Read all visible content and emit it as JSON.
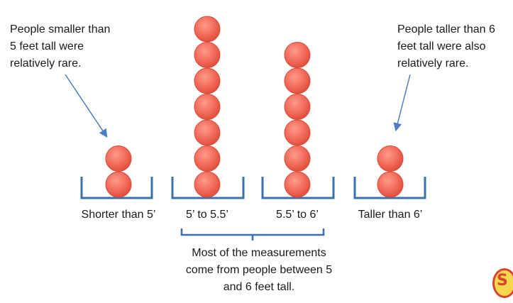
{
  "notes": {
    "left": [
      "People smaller than",
      "5 feet tall were",
      "relatively rare."
    ],
    "right": [
      "People taller than 6",
      "feet tall were also",
      "relatively rare."
    ]
  },
  "chart_data": {
    "type": "bar",
    "categories": [
      "Shorter than 5’",
      "5’ to 5.5’",
      "5.5’ to 6’",
      "Taller than 6’"
    ],
    "values": [
      2,
      7,
      6,
      2
    ]
  },
  "summary": [
    "Most of the measurements",
    "come from people between 5",
    "and 6 feet tall."
  ],
  "colors": {
    "ball": "#f26c5b",
    "ball_edge": "#d94b3a",
    "bin": "#3a6fb0",
    "arrow": "#4a7fc1"
  },
  "logo_icon": "sciencemag-logo"
}
